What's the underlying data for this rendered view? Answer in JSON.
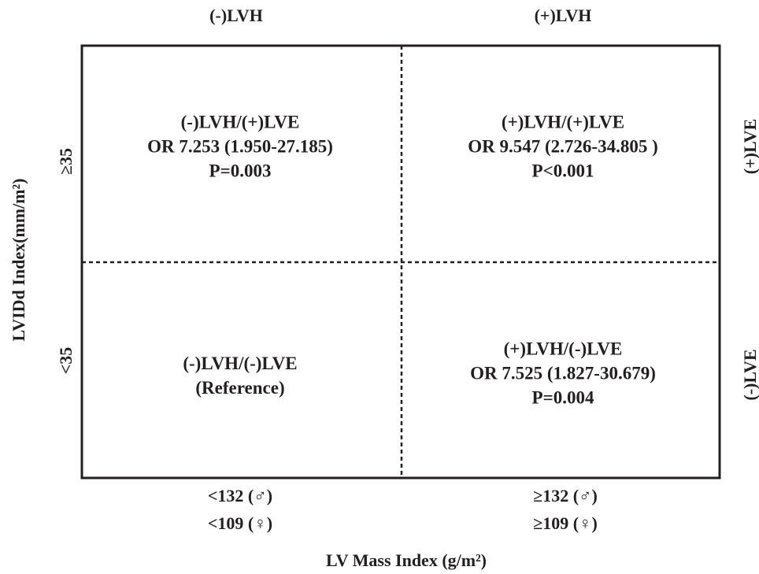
{
  "columns": {
    "top": [
      "(-)LVH",
      "(+)LVH"
    ],
    "bottom": [
      [
        "<132 (♂)",
        "<109 (♀)"
      ],
      [
        "≥132 (♂)",
        "≥109 (♀)"
      ]
    ],
    "axis_label": "LV Mass Index (g/m²)"
  },
  "rows": {
    "right": [
      "(+)LVE",
      "(-)LVE"
    ],
    "left": [
      "≥35",
      "<35"
    ],
    "axis_label": "LVIDd Index(mm/m²)"
  },
  "quadrants": [
    {
      "lines": [
        "(-)LVH/(+)LVE",
        "OR 7.253 (1.950-27.185)",
        "P=0.003"
      ]
    },
    {
      "lines": [
        "(+)LVH/(+)LVE",
        "OR 9.547 (2.726-34.805 )",
        "P<0.001"
      ]
    },
    {
      "lines": [
        "(-)LVH/(-)LVE",
        "(Reference)"
      ]
    },
    {
      "lines": [
        "(+)LVH/(-)LVE",
        "OR 7.525 (1.827-30.679)",
        "P=0.004"
      ]
    }
  ]
}
